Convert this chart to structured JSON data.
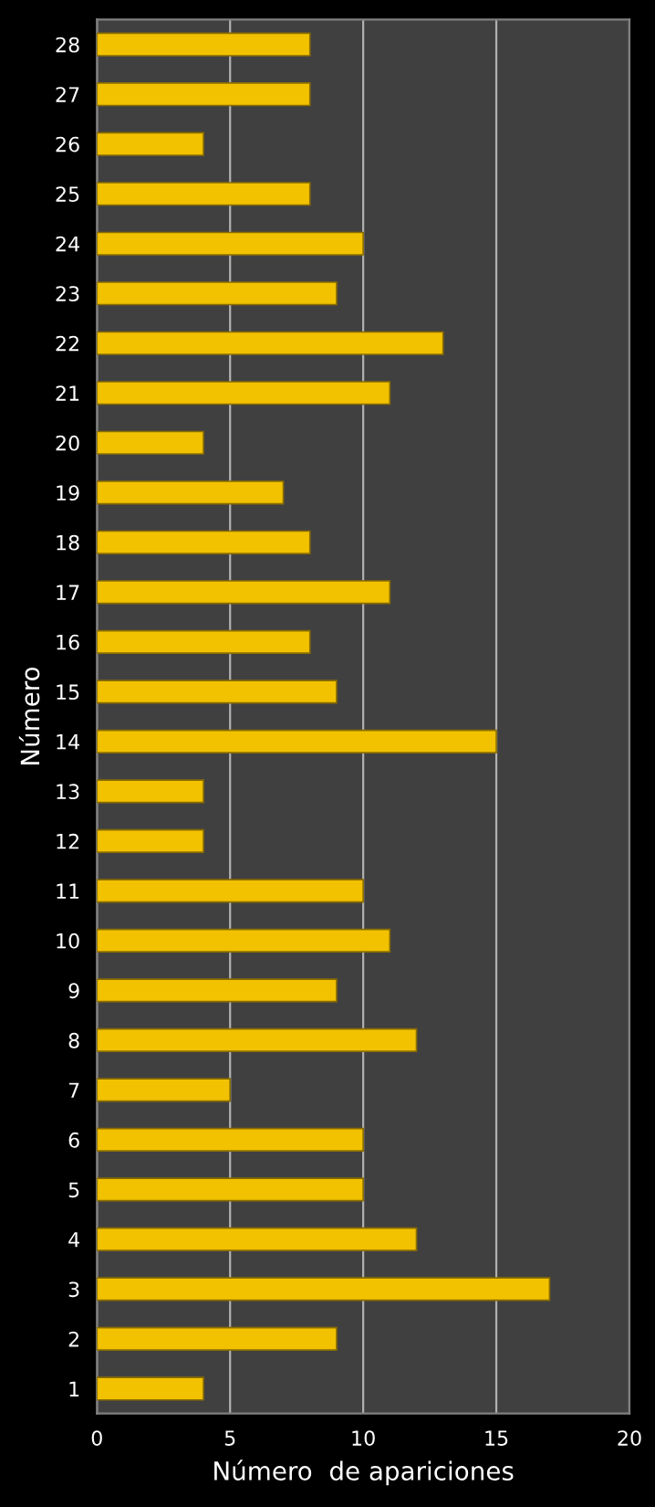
{
  "chart_data": {
    "type": "bar",
    "orientation": "horizontal",
    "xlabel": "Número  de apariciones",
    "ylabel": "Número",
    "categories": [
      "28",
      "27",
      "26",
      "25",
      "24",
      "23",
      "22",
      "21",
      "20",
      "19",
      "18",
      "17",
      "16",
      "15",
      "14",
      "13",
      "12",
      "11",
      "10",
      "9",
      "8",
      "7",
      "6",
      "5",
      "4",
      "3",
      "2",
      "1"
    ],
    "values": [
      8,
      8,
      4,
      8,
      10,
      9,
      13,
      11,
      4,
      7,
      8,
      11,
      8,
      9,
      15,
      4,
      4,
      10,
      11,
      9,
      12,
      5,
      10,
      10,
      12,
      17,
      9,
      4
    ],
    "color": "#f2c200",
    "xlim": [
      0,
      20
    ],
    "xticks": [
      0,
      5,
      10,
      15,
      20
    ],
    "grid": "x"
  }
}
